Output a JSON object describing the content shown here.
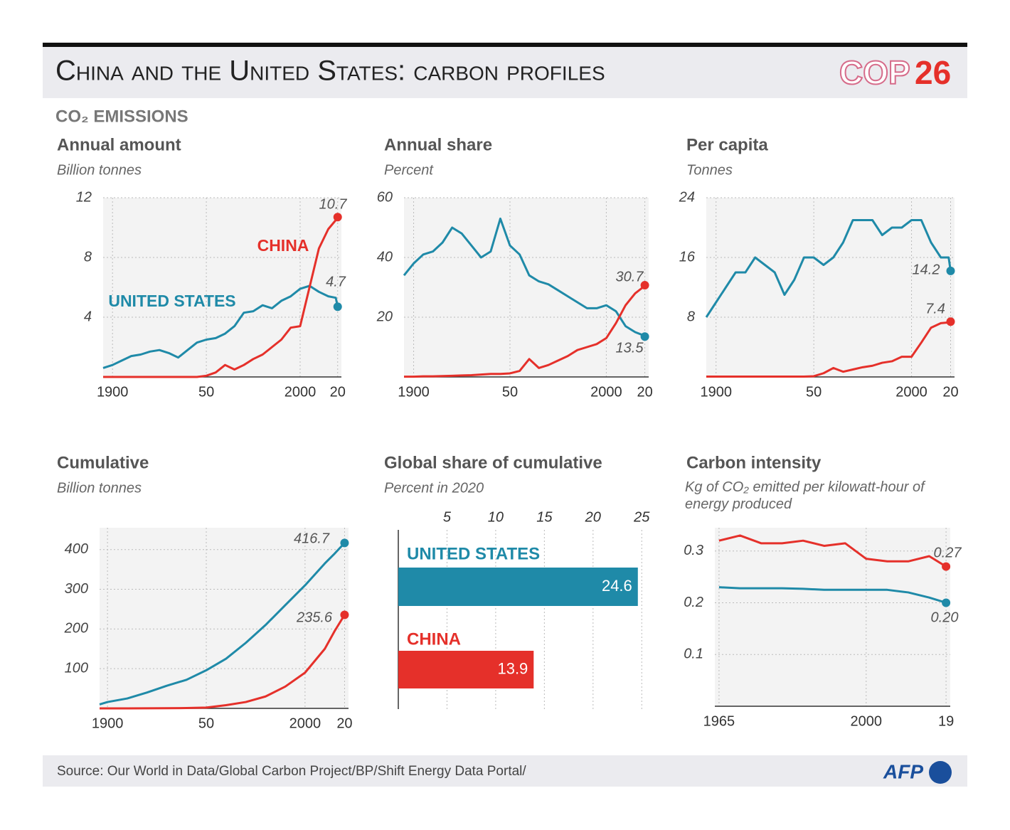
{
  "header": {
    "title": "China and the United States: carbon profiles",
    "logo_text": "COP",
    "logo_number": "26"
  },
  "section_label": "CO₂ EMISSIONS",
  "chart_data": [
    {
      "type": "line",
      "title": "Annual amount",
      "subtitle": "Billion tonnes",
      "x": [
        1895,
        1900,
        1905,
        1910,
        1915,
        1920,
        1925,
        1930,
        1935,
        1940,
        1945,
        1950,
        1955,
        1960,
        1965,
        1970,
        1975,
        1980,
        1985,
        1990,
        1995,
        2000,
        2005,
        2010,
        2015,
        2019,
        2020
      ],
      "series": [
        {
          "name": "UNITED STATES",
          "color": "#1f8aa8",
          "values": [
            0.6,
            0.8,
            1.1,
            1.4,
            1.5,
            1.7,
            1.8,
            1.6,
            1.3,
            1.8,
            2.3,
            2.5,
            2.6,
            2.9,
            3.4,
            4.3,
            4.4,
            4.8,
            4.6,
            5.1,
            5.4,
            5.9,
            6.1,
            5.7,
            5.4,
            5.3,
            4.7
          ]
        },
        {
          "name": "CHINA",
          "color": "#e5302a",
          "values": [
            0,
            0,
            0,
            0,
            0,
            0,
            0,
            0,
            0,
            0,
            0,
            0.08,
            0.3,
            0.8,
            0.5,
            0.8,
            1.2,
            1.5,
            2.0,
            2.5,
            3.3,
            3.4,
            6.0,
            8.6,
            9.9,
            10.5,
            10.7
          ]
        }
      ],
      "xlim": [
        1895,
        2022
      ],
      "xticks": [
        1900,
        {
          "value": 1950,
          "label": "50"
        },
        2000,
        {
          "value": 2020,
          "label": "20"
        }
      ],
      "ylim": [
        0,
        12
      ],
      "yticks": [
        4,
        8,
        12
      ],
      "grid": true
    },
    {
      "type": "line",
      "title": "Annual share",
      "subtitle": "Percent",
      "x": [
        1895,
        1900,
        1905,
        1910,
        1915,
        1920,
        1925,
        1930,
        1935,
        1940,
        1945,
        1950,
        1955,
        1960,
        1965,
        1970,
        1975,
        1980,
        1985,
        1990,
        1995,
        2000,
        2005,
        2010,
        2015,
        2019,
        2020
      ],
      "series": [
        {
          "color": "#1f8aa8",
          "values": [
            34,
            38,
            41,
            42,
            45,
            50,
            48,
            44,
            40,
            42,
            53,
            44,
            41,
            34,
            32,
            31,
            29,
            27,
            25,
            23,
            23,
            24,
            22,
            17,
            15,
            14,
            13.5
          ]
        },
        {
          "color": "#e5302a",
          "values": [
            0.1,
            0.1,
            0.2,
            0.2,
            0.3,
            0.4,
            0.5,
            0.6,
            0.8,
            1,
            1,
            1.2,
            2,
            6,
            3,
            4,
            5.5,
            7,
            9,
            10,
            11,
            13,
            18,
            24,
            28,
            30,
            30.7
          ]
        }
      ],
      "xlim": [
        1895,
        2022
      ],
      "xticks": [
        1900,
        {
          "value": 1950,
          "label": "50"
        },
        2000,
        {
          "value": 2020,
          "label": "20"
        }
      ],
      "ylim": [
        0,
        60
      ],
      "yticks": [
        20,
        40,
        60
      ],
      "grid": true
    },
    {
      "type": "line",
      "title": "Per capita",
      "subtitle": "Tonnes",
      "x": [
        1895,
        1900,
        1905,
        1910,
        1915,
        1920,
        1925,
        1930,
        1935,
        1940,
        1945,
        1950,
        1955,
        1960,
        1965,
        1970,
        1975,
        1980,
        1985,
        1990,
        1995,
        2000,
        2005,
        2010,
        2015,
        2019,
        2020
      ],
      "series": [
        {
          "color": "#1f8aa8",
          "values": [
            8,
            10,
            12,
            14,
            14,
            16,
            15,
            14,
            11,
            13,
            16,
            16,
            15,
            16,
            18,
            21,
            21,
            21,
            19,
            20,
            20,
            21,
            21,
            18,
            16,
            16,
            14.2
          ]
        },
        {
          "color": "#e5302a",
          "values": [
            0.05,
            0.05,
            0.05,
            0.05,
            0.05,
            0.05,
            0.05,
            0.05,
            0.05,
            0.05,
            0.05,
            0.1,
            0.5,
            1.2,
            0.7,
            1,
            1.3,
            1.5,
            1.9,
            2.1,
            2.7,
            2.7,
            4.6,
            6.6,
            7.2,
            7.3,
            7.4
          ]
        }
      ],
      "xlim": [
        1895,
        2022
      ],
      "xticks": [
        1900,
        {
          "value": 1950,
          "label": "50"
        },
        2000,
        {
          "value": 2020,
          "label": "20"
        }
      ],
      "ylim": [
        0,
        24
      ],
      "yticks": [
        8,
        16,
        24
      ],
      "grid": true
    },
    {
      "type": "line",
      "title": "Cumulative",
      "subtitle": "Billion tonnes",
      "x": [
        1896,
        1900,
        1910,
        1920,
        1930,
        1940,
        1950,
        1960,
        1970,
        1980,
        1990,
        2000,
        2010,
        2015,
        2020
      ],
      "series": [
        {
          "color": "#1f8aa8",
          "values": [
            10,
            16,
            25,
            40,
            57,
            72,
            96,
            125,
            165,
            210,
            260,
            310,
            365,
            390,
            416.7
          ]
        },
        {
          "color": "#e5302a",
          "values": [
            0,
            0,
            0,
            0.2,
            0.5,
            0.8,
            2,
            8,
            16,
            30,
            55,
            90,
            150,
            195,
            235.6
          ]
        }
      ],
      "xlim": [
        1896,
        2022
      ],
      "xticks": [
        1900,
        {
          "value": 1950,
          "label": "50"
        },
        2000,
        {
          "value": 2020,
          "label": "20"
        }
      ],
      "ylim": [
        0,
        455
      ],
      "yticks": [
        100,
        200,
        300,
        400
      ],
      "grid": true
    },
    {
      "type": "bar",
      "orientation": "horizontal",
      "title": "Global share of cumulative",
      "subtitle": "Percent in 2020",
      "categories": [
        "UNITED STATES",
        "CHINA"
      ],
      "values": [
        24.6,
        13.9
      ],
      "colors": [
        "#1f8aa8",
        "#e5302a"
      ],
      "xlim": [
        0,
        25.2
      ],
      "xticks": [
        5,
        10,
        15,
        20,
        25
      ],
      "grid": true
    },
    {
      "type": "line",
      "title": "Carbon intensity",
      "subtitle": "Kg of CO₂ emitted per kilowatt-hour of energy produced",
      "x": [
        1965,
        1970,
        1975,
        1980,
        1985,
        1990,
        1995,
        2000,
        2005,
        2010,
        2015,
        2019
      ],
      "series": [
        {
          "color": "#1f8aa8",
          "values": [
            0.23,
            0.228,
            0.228,
            0.228,
            0.227,
            0.225,
            0.225,
            0.225,
            0.225,
            0.22,
            0.21,
            0.2
          ],
          "value_labels": [
            null,
            null,
            null,
            null,
            null,
            null,
            null,
            null,
            null,
            null,
            null,
            "0.20"
          ]
        },
        {
          "color": "#e5302a",
          "values": [
            0.32,
            0.33,
            0.315,
            0.315,
            0.32,
            0.31,
            0.315,
            0.285,
            0.28,
            0.28,
            0.29,
            0.27
          ]
        }
      ],
      "xlim": [
        1964,
        2020
      ],
      "xticks": [
        1965,
        2000,
        {
          "value": 2019,
          "label": "19"
        }
      ],
      "ylim": [
        0,
        0.345
      ],
      "yticks": [
        0.1,
        0.2,
        0.3
      ],
      "grid": true
    }
  ],
  "source": "Source: Our World in Data/Global Carbon Project/BP/Shift Energy Data Portal/",
  "footer_logo": "AFP"
}
